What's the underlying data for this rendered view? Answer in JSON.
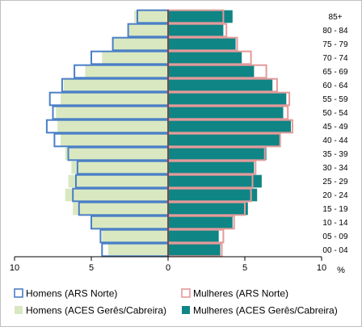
{
  "chart_data": {
    "type": "bar",
    "orientation": "horizontal-pyramid",
    "categories": [
      "00 - 04",
      "05 - 09",
      "10 - 14",
      "15 - 19",
      "20 - 24",
      "25 - 29",
      "30 - 34",
      "35 - 39",
      "40 - 44",
      "45 - 49",
      "50 - 54",
      "55 - 59",
      "60 - 64",
      "65 - 69",
      "70 - 74",
      "75 - 79",
      "80 - 84",
      "85+"
    ],
    "xlim": [
      -10,
      10
    ],
    "x_ticks": [
      {
        "value": -10,
        "label": "10"
      },
      {
        "value": -5,
        "label": "5"
      },
      {
        "value": 0,
        "label": "0"
      },
      {
        "value": 5,
        "label": "5"
      },
      {
        "value": 10,
        "label": "10"
      }
    ],
    "unit_label": "%",
    "series": [
      {
        "name": "Homens (ACES Gerês/Cabreira)",
        "side": "left",
        "style": "fill",
        "color": "#d9e8c1",
        "values": [
          3.9,
          4.3,
          5.0,
          6.2,
          6.7,
          6.5,
          6.3,
          6.7,
          7.0,
          7.2,
          7.3,
          7.0,
          6.8,
          5.4,
          4.3,
          3.6,
          2.6,
          2.2
        ]
      },
      {
        "name": "Mulheres (ACES Gerês/Cabreira)",
        "side": "right",
        "style": "fill",
        "color": "#0f8585",
        "values": [
          3.4,
          3.3,
          4.2,
          5.2,
          5.8,
          6.1,
          5.6,
          6.4,
          7.3,
          8.0,
          7.5,
          7.7,
          6.8,
          5.6,
          4.8,
          4.4,
          3.6,
          4.2
        ]
      },
      {
        "name": "Homens (ARS Norte)",
        "side": "left",
        "style": "outline",
        "color": "#4a7fc6",
        "values": [
          4.3,
          4.4,
          5.0,
          5.8,
          6.2,
          6.0,
          5.9,
          6.5,
          7.4,
          7.9,
          7.5,
          7.7,
          6.9,
          6.1,
          5.0,
          3.6,
          2.6,
          2.0
        ]
      },
      {
        "name": "Mulheres (ARS Norte)",
        "side": "right",
        "style": "outline",
        "color": "#e39a9a",
        "values": [
          3.5,
          3.6,
          4.3,
          5.0,
          5.4,
          5.5,
          5.7,
          6.3,
          7.3,
          8.1,
          7.8,
          7.9,
          7.1,
          6.4,
          5.4,
          4.5,
          3.8,
          3.6
        ]
      }
    ]
  },
  "legend": {
    "items": [
      {
        "label": "Homens (ARS Norte)",
        "style": "outline",
        "color": "#4a7fc6"
      },
      {
        "label": "Mulheres (ARS Norte)",
        "style": "outline",
        "color": "#e39a9a"
      },
      {
        "label": "Homens (ACES Gerês/Cabreira)",
        "style": "fill",
        "color": "#d9e8c1"
      },
      {
        "label": "Mulheres (ACES Gerês/Cabreira)",
        "style": "fill",
        "color": "#0f8585"
      }
    ]
  }
}
